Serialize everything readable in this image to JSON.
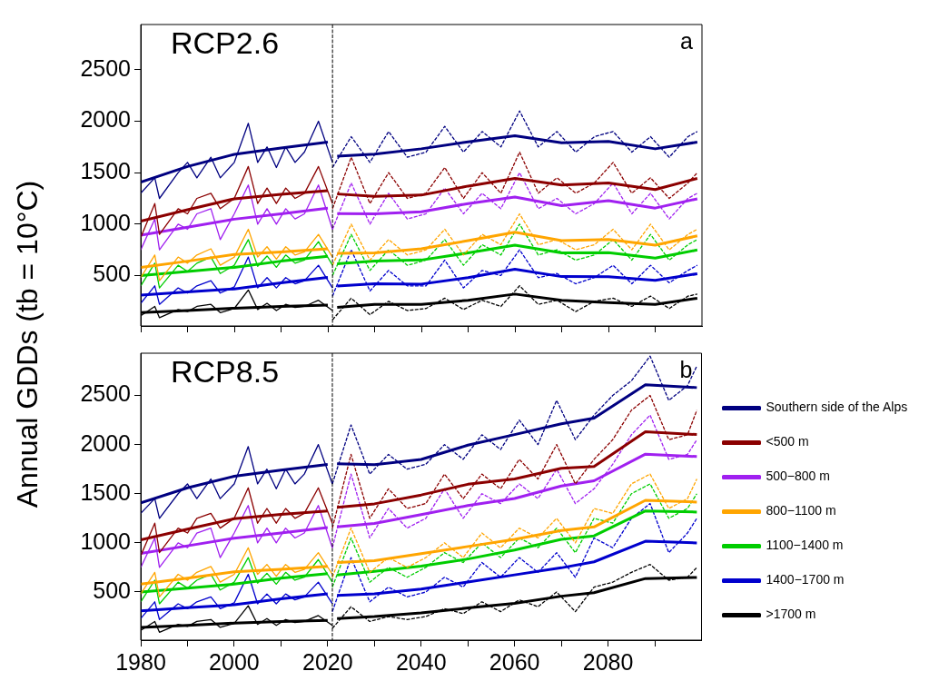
{
  "chart_data": [
    {
      "type": "line",
      "title": "RCP2.6",
      "ylabel": "Annual GDDs (tb = 10°C)",
      "annotations": [
        "a"
      ],
      "xlim": [
        1980,
        2100
      ],
      "xticks": [
        1980,
        {
          "value": 1990,
          "label": null
        },
        2000,
        {
          "value": 2010,
          "label": null
        },
        2020,
        {
          "value": 2030,
          "label": null
        },
        2040,
        {
          "value": 2050,
          "label": null
        },
        2060,
        {
          "value": 2070,
          "label": null
        },
        2080,
        {
          "value": 2090,
          "label": null
        }
      ],
      "ylim": [
        10,
        2940
      ],
      "yticks": [
        500,
        1000,
        1500,
        2000,
        2500
      ],
      "tick_labels": "y",
      "grid": false,
      "legend": false,
      "marker": "none",
      "line_style": "solid",
      "ref_lines": [
        {
          "axis": "x",
          "value": 2021,
          "color": "#000000",
          "line_style": "dashed"
        }
      ],
      "series": [
        {
          "color": "#000080",
          "x": [
            1980,
            1983,
            1984,
            1988,
            1990,
            1992,
            1995,
            1997,
            2000,
            2003,
            2005,
            2007,
            2009,
            2011,
            2013,
            2015,
            2018,
            2021
          ],
          "values": [
            1300,
            1450,
            1250,
            1500,
            1600,
            1450,
            1650,
            1450,
            1600,
            1980,
            1600,
            1750,
            1550,
            1750,
            1600,
            1700,
            2000,
            1600
          ]
        },
        {
          "color": "#000080",
          "x": [
            1980,
            1990,
            2000,
            2010,
            2020,
            2021,
            2022,
            2030,
            2040,
            2050,
            2060,
            2070,
            2080,
            2090,
            2099
          ],
          "values": [
            1408,
            1560,
            1678,
            1740,
            1797,
            null,
            1660,
            1680,
            1732,
            1800,
            1859,
            1790,
            1804,
            1732,
            1797
          ]
        },
        {
          "color": "#000080",
          "line_style": "dashed",
          "x": [
            2021,
            2025,
            2029,
            2033,
            2037,
            2041,
            2045,
            2049,
            2053,
            2057,
            2061,
            2065,
            2069,
            2073,
            2077,
            2081,
            2085,
            2089,
            2093,
            2097,
            2099
          ],
          "values": [
            1550,
            1850,
            1600,
            1900,
            1650,
            1700,
            1950,
            1700,
            1900,
            1750,
            2100,
            1750,
            1900,
            1700,
            1850,
            1900,
            1700,
            1850,
            1650,
            1850,
            1900
          ]
        },
        {
          "color": "#8b0000",
          "x": [
            1980,
            1983,
            1984,
            1988,
            1990,
            1992,
            1995,
            1997,
            2000,
            2003,
            2005,
            2007,
            2009,
            2011,
            2013,
            2015,
            2018,
            2021
          ],
          "values": [
            870,
            1200,
            900,
            1150,
            1100,
            1250,
            1300,
            1150,
            1250,
            1560,
            1200,
            1350,
            1200,
            1350,
            1250,
            1300,
            1560,
            1200
          ]
        },
        {
          "color": "#8b0000",
          "x": [
            1980,
            1990,
            2000,
            2010,
            2020,
            2021,
            2022,
            2030,
            2040,
            2050,
            2060,
            2070,
            2080,
            2090,
            2099
          ],
          "values": [
            1030,
            1140,
            1246,
            1290,
            1325,
            null,
            1293,
            1270,
            1282,
            1370,
            1444,
            1380,
            1400,
            1336,
            1444
          ]
        },
        {
          "color": "#8b0000",
          "line_style": "dashed",
          "x": [
            2021,
            2025,
            2029,
            2033,
            2037,
            2041,
            2045,
            2049,
            2053,
            2057,
            2061,
            2065,
            2069,
            2073,
            2077,
            2081,
            2085,
            2089,
            2093,
            2097,
            2099
          ],
          "values": [
            1150,
            1650,
            1200,
            1500,
            1250,
            1300,
            1550,
            1250,
            1500,
            1300,
            1700,
            1300,
            1450,
            1300,
            1400,
            1600,
            1300,
            1450,
            1250,
            1400,
            1500
          ]
        },
        {
          "color": "#a020f0",
          "x": [
            1980,
            1983,
            1984,
            1988,
            1990,
            1992,
            1995,
            1997,
            2000,
            2003,
            2005,
            2007,
            2009,
            2011,
            2013,
            2015,
            2018,
            2021
          ],
          "values": [
            750,
            1050,
            750,
            1000,
            950,
            1100,
            1150,
            850,
            1100,
            1380,
            1000,
            1150,
            1000,
            1150,
            1050,
            1100,
            1380,
            950
          ]
        },
        {
          "color": "#a020f0",
          "x": [
            1980,
            1990,
            2000,
            2010,
            2020,
            2021,
            2022,
            2030,
            2040,
            2050,
            2060,
            2070,
            2080,
            2090,
            2099
          ],
          "values": [
            893,
            970,
            1048,
            1100,
            1156,
            null,
            1102,
            1100,
            1120,
            1200,
            1264,
            1180,
            1228,
            1156,
            1246
          ]
        },
        {
          "color": "#a020f0",
          "line_style": "dashed",
          "x": [
            2021,
            2025,
            2029,
            2033,
            2037,
            2041,
            2045,
            2049,
            2053,
            2057,
            2061,
            2065,
            2069,
            2073,
            2077,
            2081,
            2085,
            2089,
            2093,
            2097,
            2099
          ],
          "values": [
            950,
            1400,
            1000,
            1300,
            1050,
            1100,
            1350,
            1100,
            1300,
            1150,
            1500,
            1150,
            1250,
            1100,
            1200,
            1400,
            1100,
            1300,
            1050,
            1250,
            1300
          ]
        },
        {
          "color": "#ffa500",
          "x": [
            1980,
            1983,
            1984,
            1988,
            1990,
            1992,
            1995,
            1997,
            2000,
            2003,
            2005,
            2007,
            2009,
            2011,
            2013,
            2015,
            2018,
            2021
          ],
          "values": [
            480,
            700,
            450,
            680,
            620,
            700,
            760,
            600,
            680,
            950,
            680,
            780,
            660,
            780,
            700,
            730,
            900,
            680
          ]
        },
        {
          "color": "#ffa500",
          "x": [
            1980,
            1990,
            2000,
            2010,
            2020,
            2021,
            2022,
            2030,
            2040,
            2050,
            2060,
            2070,
            2080,
            2090,
            2099
          ],
          "values": [
            580,
            640,
            705,
            730,
            760,
            null,
            716,
            720,
            760,
            840,
            922,
            840,
            850,
            795,
            886
          ]
        },
        {
          "color": "#ffa500",
          "line_style": "dashed",
          "x": [
            2021,
            2025,
            2029,
            2033,
            2037,
            2041,
            2045,
            2049,
            2053,
            2057,
            2061,
            2065,
            2069,
            2073,
            2077,
            2081,
            2085,
            2089,
            2093,
            2097,
            2099
          ],
          "values": [
            600,
            1000,
            650,
            850,
            700,
            750,
            950,
            700,
            900,
            800,
            1100,
            800,
            850,
            750,
            800,
            950,
            750,
            1000,
            750,
            900,
            950
          ]
        },
        {
          "color": "#00cd00",
          "x": [
            1980,
            1983,
            1984,
            1988,
            1990,
            1992,
            1995,
            1997,
            2000,
            2003,
            2005,
            2007,
            2009,
            2011,
            2013,
            2015,
            2018,
            2021
          ],
          "values": [
            400,
            620,
            380,
            600,
            540,
            620,
            680,
            520,
            600,
            850,
            590,
            690,
            580,
            700,
            620,
            650,
            830,
            600
          ]
        },
        {
          "color": "#00cd00",
          "x": [
            1980,
            1990,
            2000,
            2010,
            2020,
            2021,
            2022,
            2030,
            2040,
            2050,
            2060,
            2070,
            2080,
            2090,
            2099
          ],
          "values": [
            500,
            540,
            580,
            640,
            687,
            null,
            615,
            640,
            651,
            720,
            795,
            720,
            723,
            669,
            749
          ]
        },
        {
          "color": "#00cd00",
          "line_style": "dashed",
          "x": [
            2021,
            2025,
            2029,
            2033,
            2037,
            2041,
            2045,
            2049,
            2053,
            2057,
            2061,
            2065,
            2069,
            2073,
            2077,
            2081,
            2085,
            2089,
            2093,
            2097,
            2099
          ],
          "values": [
            500,
            900,
            550,
            750,
            600,
            650,
            850,
            600,
            800,
            700,
            1000,
            700,
            750,
            650,
            700,
            850,
            650,
            900,
            650,
            800,
            850
          ]
        },
        {
          "color": "#0000cd",
          "x": [
            1980,
            1983,
            1984,
            1988,
            1990,
            1992,
            1995,
            1997,
            2000,
            2003,
            2005,
            2007,
            2009,
            2011,
            2013,
            2015,
            2018,
            2021
          ],
          "values": [
            230,
            400,
            220,
            380,
            330,
            400,
            450,
            330,
            390,
            680,
            380,
            480,
            380,
            480,
            420,
            450,
            600,
            380
          ]
        },
        {
          "color": "#0000cd",
          "x": [
            1980,
            1990,
            2000,
            2010,
            2020,
            2021,
            2022,
            2030,
            2040,
            2050,
            2060,
            2070,
            2080,
            2090,
            2099
          ],
          "values": [
            309,
            340,
            370,
            430,
            482,
            null,
            399,
            420,
            417,
            480,
            561,
            490,
            489,
            453,
            518
          ]
        },
        {
          "color": "#0000cd",
          "line_style": "dashed",
          "x": [
            2021,
            2025,
            2029,
            2033,
            2037,
            2041,
            2045,
            2049,
            2053,
            2057,
            2061,
            2065,
            2069,
            2073,
            2077,
            2081,
            2085,
            2089,
            2093,
            2097,
            2099
          ],
          "values": [
            300,
            750,
            350,
            550,
            400,
            400,
            650,
            380,
            550,
            500,
            750,
            480,
            520,
            420,
            480,
            600,
            420,
            600,
            430,
            550,
            600
          ]
        },
        {
          "color": "#000000",
          "x": [
            1980,
            1983,
            1984,
            1988,
            1990,
            1992,
            1995,
            1997,
            2000,
            2003,
            2005,
            2007,
            2009,
            2011,
            2013,
            2015,
            2018,
            2021
          ],
          "values": [
            110,
            200,
            90,
            170,
            150,
            200,
            220,
            140,
            180,
            360,
            170,
            230,
            160,
            220,
            190,
            200,
            260,
            160
          ]
        },
        {
          "color": "#000000",
          "x": [
            1980,
            1990,
            2000,
            2010,
            2020,
            2021,
            2022,
            2030,
            2040,
            2050,
            2060,
            2070,
            2080,
            2090,
            2099
          ],
          "values": [
            140,
            160,
            183,
            200,
            212,
            null,
            190,
            220,
            219,
            260,
            320,
            260,
            237,
            219,
            280
          ]
        },
        {
          "color": "#000000",
          "line_style": "dashed",
          "x": [
            2021,
            2025,
            2029,
            2033,
            2037,
            2041,
            2045,
            2049,
            2053,
            2057,
            2061,
            2065,
            2069,
            2073,
            2077,
            2081,
            2085,
            2089,
            2093,
            2097,
            2099
          ],
          "values": [
            70,
            280,
            120,
            250,
            160,
            180,
            280,
            170,
            260,
            200,
            400,
            220,
            260,
            150,
            250,
            280,
            200,
            300,
            180,
            300,
            320
          ]
        }
      ]
    },
    {
      "type": "line",
      "title": "RCP8.5",
      "annotations": [
        "b"
      ],
      "xlim": [
        1980,
        2100
      ],
      "xticks": [
        1980,
        {
          "value": 1990,
          "label": null
        },
        2000,
        {
          "value": 2010,
          "label": null
        },
        2020,
        {
          "value": 2030,
          "label": null
        },
        2040,
        {
          "value": 2050,
          "label": null
        },
        2060,
        {
          "value": 2070,
          "label": null
        },
        2080,
        {
          "value": 2090,
          "label": null
        }
      ],
      "ylim": [
        10,
        2930
      ],
      "yticks": [
        500,
        1000,
        1500,
        2000,
        2500
      ],
      "grid": false,
      "legend": "right",
      "marker": "none",
      "line_style": "solid",
      "ref_lines": [
        {
          "axis": "x",
          "value": 2021,
          "color": "#000000",
          "line_style": "dashed"
        }
      ],
      "series": [
        {
          "color": "#000080",
          "x": [
            1980,
            1983,
            1984,
            1988,
            1990,
            1992,
            1995,
            1997,
            2000,
            2003,
            2005,
            2007,
            2009,
            2011,
            2013,
            2015,
            2018,
            2021
          ],
          "values": [
            1300,
            1450,
            1250,
            1500,
            1600,
            1450,
            1650,
            1450,
            1600,
            1980,
            1600,
            1750,
            1550,
            1750,
            1600,
            1700,
            2000,
            1600
          ]
        },
        {
          "name": "Southern side of the Alps",
          "color": "#000080",
          "x": [
            1980,
            1990,
            2000,
            2010,
            2020,
            2021,
            2022,
            2030,
            2040,
            2050,
            2060,
            2070,
            2077,
            2088,
            2099
          ],
          "values": [
            1408,
            1560,
            1678,
            1740,
            1797,
            null,
            1806,
            1795,
            1849,
            1994,
            2102,
            2211,
            2270,
            2608,
            2580
          ]
        },
        {
          "color": "#000080",
          "line_style": "dashed",
          "x": [
            2021,
            2025,
            2029,
            2033,
            2037,
            2041,
            2045,
            2049,
            2053,
            2057,
            2061,
            2065,
            2069,
            2073,
            2077,
            2081,
            2085,
            2089,
            2093,
            2097,
            2099
          ],
          "values": [
            1600,
            2200,
            1700,
            1900,
            1750,
            1800,
            2000,
            1850,
            2100,
            1950,
            2250,
            2000,
            2450,
            2050,
            2300,
            2500,
            2650,
            2900,
            2450,
            2600,
            2800
          ]
        },
        {
          "color": "#8b0000",
          "x": [
            1980,
            1983,
            1984,
            1988,
            1990,
            1992,
            1995,
            1997,
            2000,
            2003,
            2005,
            2007,
            2009,
            2011,
            2013,
            2015,
            2018,
            2021
          ],
          "values": [
            870,
            1200,
            900,
            1150,
            1100,
            1250,
            1300,
            1150,
            1250,
            1560,
            1200,
            1350,
            1200,
            1350,
            1250,
            1300,
            1560,
            1200
          ]
        },
        {
          "name": "<500 m",
          "color": "#8b0000",
          "x": [
            1980,
            1990,
            2000,
            2010,
            2020,
            2021,
            2022,
            2030,
            2040,
            2050,
            2060,
            2070,
            2077,
            2088,
            2099
          ],
          "values": [
            1030,
            1140,
            1246,
            1290,
            1325,
            null,
            1361,
            1397,
            1487,
            1596,
            1650,
            1759,
            1777,
            2131,
            2102
          ]
        },
        {
          "color": "#8b0000",
          "line_style": "dashed",
          "x": [
            2021,
            2025,
            2029,
            2033,
            2037,
            2041,
            2045,
            2049,
            2053,
            2057,
            2061,
            2065,
            2069,
            2073,
            2077,
            2081,
            2085,
            2089,
            2093,
            2097,
            2099
          ],
          "values": [
            1150,
            1900,
            1250,
            1550,
            1350,
            1400,
            1700,
            1450,
            1700,
            1550,
            1850,
            1650,
            2000,
            1600,
            1850,
            2050,
            2350,
            2500,
            2050,
            2100,
            2350
          ]
        },
        {
          "color": "#a020f0",
          "x": [
            1980,
            1983,
            1984,
            1988,
            1990,
            1992,
            1995,
            1997,
            2000,
            2003,
            2005,
            2007,
            2009,
            2011,
            2013,
            2015,
            2018,
            2021
          ],
          "values": [
            750,
            1050,
            750,
            1000,
            950,
            1100,
            1150,
            850,
            1100,
            1380,
            1000,
            1150,
            1000,
            1150,
            1050,
            1100,
            1380,
            950
          ]
        },
        {
          "name": "500−800 m",
          "color": "#a020f0",
          "x": [
            1980,
            1990,
            2000,
            2010,
            2020,
            2021,
            2022,
            2030,
            2040,
            2050,
            2060,
            2070,
            2077,
            2088,
            2099
          ],
          "values": [
            893,
            970,
            1048,
            1100,
            1156,
            null,
            1162,
            1198,
            1288,
            1379,
            1451,
            1578,
            1632,
            1903,
            1878
          ]
        },
        {
          "color": "#a020f0",
          "line_style": "dashed",
          "x": [
            2021,
            2025,
            2029,
            2033,
            2037,
            2041,
            2045,
            2049,
            2053,
            2057,
            2061,
            2065,
            2069,
            2073,
            2077,
            2081,
            2085,
            2089,
            2093,
            2097,
            2099
          ],
          "values": [
            950,
            1700,
            1050,
            1350,
            1150,
            1250,
            1550,
            1250,
            1500,
            1400,
            1600,
            1450,
            1750,
            1400,
            1550,
            1800,
            2100,
            2300,
            1850,
            1900,
            2050
          ]
        },
        {
          "color": "#ffa500",
          "x": [
            1980,
            1983,
            1984,
            1988,
            1990,
            1992,
            1995,
            1997,
            2000,
            2003,
            2005,
            2007,
            2009,
            2011,
            2013,
            2015,
            2018,
            2021
          ],
          "values": [
            480,
            700,
            450,
            680,
            620,
            700,
            760,
            600,
            680,
            950,
            680,
            780,
            660,
            780,
            700,
            730,
            900,
            680
          ]
        },
        {
          "name": "800−1100 m",
          "color": "#ffa500",
          "x": [
            1980,
            1990,
            2000,
            2010,
            2020,
            2021,
            2022,
            2030,
            2040,
            2050,
            2060,
            2070,
            2077,
            2088,
            2099
          ],
          "values": [
            580,
            640,
            705,
            730,
            760,
            null,
            800,
            818,
            891,
            963,
            1035,
            1126,
            1162,
            1433,
            1415
          ]
        },
        {
          "color": "#ffa500",
          "line_style": "dashed",
          "x": [
            2021,
            2025,
            2029,
            2033,
            2037,
            2041,
            2045,
            2049,
            2053,
            2057,
            2061,
            2065,
            2069,
            2073,
            2077,
            2081,
            2085,
            2089,
            2093,
            2097,
            2099
          ],
          "values": [
            650,
            1150,
            700,
            850,
            750,
            850,
            1000,
            850,
            1100,
            950,
            1150,
            1050,
            1250,
            1000,
            1350,
            1300,
            1600,
            1700,
            1350,
            1450,
            1650
          ]
        },
        {
          "color": "#00cd00",
          "x": [
            1980,
            1983,
            1984,
            1988,
            1990,
            1992,
            1995,
            1997,
            2000,
            2003,
            2005,
            2007,
            2009,
            2011,
            2013,
            2015,
            2018,
            2021
          ],
          "values": [
            400,
            620,
            380,
            600,
            540,
            620,
            680,
            520,
            600,
            850,
            590,
            690,
            580,
            700,
            620,
            650,
            830,
            600
          ]
        },
        {
          "name": "1100−1400 m",
          "color": "#00cd00",
          "x": [
            1980,
            1990,
            2000,
            2010,
            2020,
            2021,
            2022,
            2030,
            2040,
            2050,
            2060,
            2070,
            2077,
            2088,
            2099
          ],
          "values": [
            500,
            540,
            580,
            640,
            687,
            null,
            674,
            710,
            764,
            836,
            927,
            1035,
            1071,
            1325,
            1314
          ]
        },
        {
          "color": "#00cd00",
          "line_style": "dashed",
          "x": [
            2021,
            2025,
            2029,
            2033,
            2037,
            2041,
            2045,
            2049,
            2053,
            2057,
            2061,
            2065,
            2069,
            2073,
            2077,
            2081,
            2085,
            2089,
            2093,
            2097,
            2099
          ],
          "values": [
            550,
            1050,
            600,
            750,
            650,
            750,
            900,
            800,
            1000,
            850,
            1050,
            950,
            1150,
            900,
            1250,
            1200,
            1500,
            1600,
            1250,
            1350,
            1500
          ]
        },
        {
          "color": "#0000cd",
          "x": [
            1980,
            1983,
            1984,
            1988,
            1990,
            1992,
            1995,
            1997,
            2000,
            2003,
            2005,
            2007,
            2009,
            2011,
            2013,
            2015,
            2018,
            2021
          ],
          "values": [
            230,
            400,
            220,
            380,
            330,
            400,
            450,
            330,
            390,
            680,
            380,
            480,
            380,
            480,
            420,
            450,
            600,
            380
          ]
        },
        {
          "name": "1400−1700 m",
          "color": "#0000cd",
          "x": [
            1980,
            1990,
            2000,
            2010,
            2020,
            2021,
            2022,
            2030,
            2040,
            2050,
            2060,
            2070,
            2077,
            2088,
            2099
          ],
          "values": [
            309,
            340,
            370,
            430,
            482,
            null,
            464,
            482,
            529,
            601,
            674,
            746,
            807,
            1017,
            999
          ]
        },
        {
          "color": "#0000cd",
          "line_style": "dashed",
          "x": [
            2021,
            2025,
            2029,
            2033,
            2037,
            2041,
            2045,
            2049,
            2053,
            2057,
            2061,
            2065,
            2069,
            2073,
            2077,
            2081,
            2085,
            2089,
            2093,
            2097,
            2099
          ],
          "values": [
            300,
            850,
            400,
            550,
            450,
            500,
            650,
            550,
            800,
            650,
            850,
            700,
            900,
            650,
            1050,
            950,
            1250,
            1400,
            900,
            1100,
            1250
          ]
        },
        {
          "color": "#000000",
          "x": [
            1980,
            1983,
            1984,
            1988,
            1990,
            1992,
            1995,
            1997,
            2000,
            2003,
            2005,
            2007,
            2009,
            2011,
            2013,
            2015,
            2018,
            2021
          ],
          "values": [
            110,
            200,
            90,
            170,
            150,
            200,
            220,
            140,
            180,
            360,
            170,
            230,
            160,
            220,
            190,
            200,
            260,
            160
          ]
        },
        {
          "name": ">1700 m",
          "color": "#000000",
          "x": [
            1980,
            1990,
            2000,
            2010,
            2020,
            2021,
            2022,
            2030,
            2040,
            2050,
            2060,
            2070,
            2077,
            2088,
            2099
          ],
          "values": [
            140,
            160,
            183,
            200,
            212,
            null,
            229,
            250,
            287,
            337,
            384,
            457,
            493,
            637,
            648
          ]
        },
        {
          "color": "#000000",
          "line_style": "dashed",
          "x": [
            2021,
            2025,
            2029,
            2033,
            2037,
            2041,
            2045,
            2049,
            2053,
            2057,
            2061,
            2065,
            2069,
            2073,
            2077,
            2081,
            2085,
            2089,
            2093,
            2097,
            2099
          ],
          "values": [
            130,
            350,
            200,
            250,
            220,
            250,
            330,
            280,
            400,
            300,
            420,
            350,
            500,
            300,
            550,
            600,
            700,
            780,
            620,
            650,
            750
          ]
        }
      ]
    }
  ]
}
